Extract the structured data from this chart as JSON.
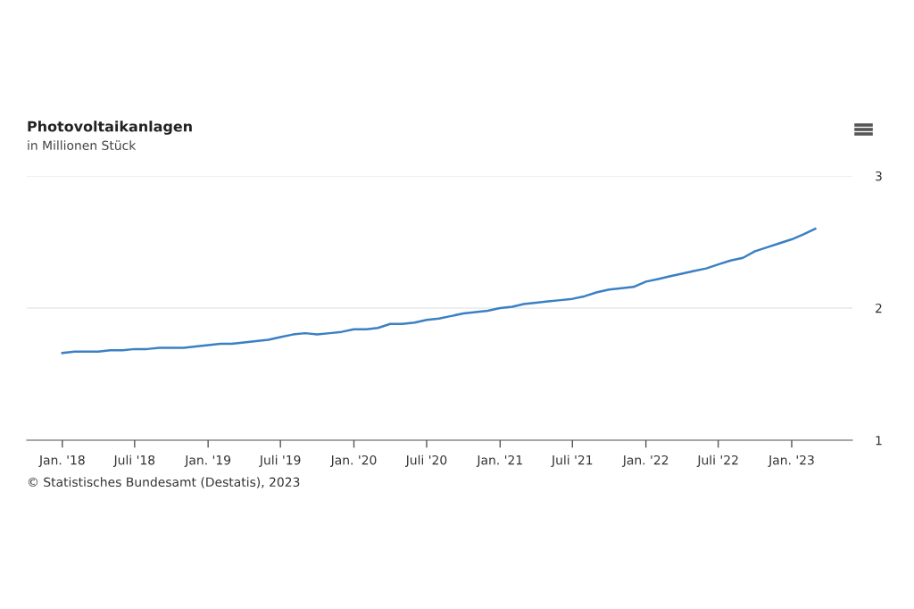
{
  "chart_data": {
    "type": "line",
    "title": "Photovoltaikanlagen",
    "subtitle": "in Millionen Stück",
    "annotations": [
      "© Statistisches Bundesamt (Destatis), 2023"
    ],
    "x": [
      "2018-01",
      "2018-02",
      "2018-03",
      "2018-04",
      "2018-05",
      "2018-06",
      "2018-07",
      "2018-08",
      "2018-09",
      "2018-10",
      "2018-11",
      "2018-12",
      "2019-01",
      "2019-02",
      "2019-03",
      "2019-04",
      "2019-05",
      "2019-06",
      "2019-07",
      "2019-08",
      "2019-09",
      "2019-10",
      "2019-11",
      "2019-12",
      "2020-01",
      "2020-02",
      "2020-03",
      "2020-04",
      "2020-05",
      "2020-06",
      "2020-07",
      "2020-08",
      "2020-09",
      "2020-10",
      "2020-11",
      "2020-12",
      "2021-01",
      "2021-02",
      "2021-03",
      "2021-04",
      "2021-05",
      "2021-06",
      "2021-07",
      "2021-08",
      "2021-09",
      "2021-10",
      "2021-11",
      "2021-12",
      "2022-01",
      "2022-02",
      "2022-03",
      "2022-04",
      "2022-05",
      "2022-06",
      "2022-07",
      "2022-08",
      "2022-09",
      "2022-10",
      "2022-11",
      "2022-12",
      "2023-01",
      "2023-02",
      "2023-03"
    ],
    "series": [
      {
        "color": "#3a80c3",
        "values": [
          1.66,
          1.67,
          1.67,
          1.67,
          1.68,
          1.68,
          1.69,
          1.69,
          1.7,
          1.7,
          1.7,
          1.71,
          1.72,
          1.73,
          1.73,
          1.74,
          1.75,
          1.76,
          1.78,
          1.8,
          1.81,
          1.8,
          1.81,
          1.82,
          1.84,
          1.84,
          1.85,
          1.88,
          1.88,
          1.89,
          1.91,
          1.92,
          1.94,
          1.96,
          1.97,
          1.98,
          2.0,
          2.01,
          2.03,
          2.04,
          2.05,
          2.06,
          2.07,
          2.09,
          2.12,
          2.14,
          2.15,
          2.16,
          2.2,
          2.22,
          2.24,
          2.26,
          2.28,
          2.3,
          2.33,
          2.36,
          2.38,
          2.43,
          2.46,
          2.49,
          2.52,
          2.56,
          2.6
        ]
      }
    ],
    "xlim": [
      "2017-10-04",
      "2023-06-02"
    ],
    "xticks": [
      {
        "value": "2018-01",
        "label": "Jan. '18"
      },
      {
        "value": "2018-07",
        "label": "Juli '18"
      },
      {
        "value": "2019-01",
        "label": "Jan. '19"
      },
      {
        "value": "2019-07",
        "label": "Juli '19"
      },
      {
        "value": "2020-01",
        "label": "Jan. '20"
      },
      {
        "value": "2020-07",
        "label": "Juli '20"
      },
      {
        "value": "2021-01",
        "label": "Jan. '21"
      },
      {
        "value": "2021-07",
        "label": "Juli '21"
      },
      {
        "value": "2022-01",
        "label": "Jan. '22"
      },
      {
        "value": "2022-07",
        "label": "Juli '22"
      },
      {
        "value": "2023-01",
        "label": "Jan. '23"
      }
    ],
    "ylim": [
      1,
      3
    ],
    "yticks": [
      1,
      2,
      3
    ],
    "grid": "y",
    "legend": false,
    "marker": "none",
    "line_style": "solid"
  }
}
